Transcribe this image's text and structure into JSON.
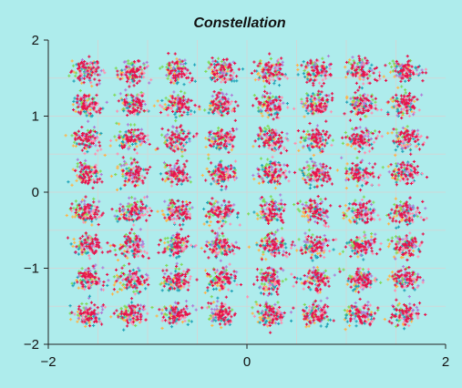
{
  "chart_data": {
    "type": "scatter",
    "title": "Constellation",
    "xlabel": "",
    "ylabel": "",
    "xlim": [
      -2,
      2
    ],
    "ylim": [
      -2,
      2
    ],
    "grid": true,
    "x_ticks": [
      "-2",
      "0",
      "2"
    ],
    "y_ticks": [
      "2",
      "1",
      "0",
      "-1",
      "-2"
    ],
    "constellation_levels": [
      -1.6,
      -1.15,
      -0.7,
      -0.25,
      0.25,
      0.7,
      1.15,
      1.6
    ],
    "points_per_cluster": 42,
    "series_colors": [
      "#ffb347",
      "#7ed957",
      "#1fa3b8",
      "#b07cd6",
      "#ff8fb0",
      "#e8114a"
    ],
    "colors": {
      "background": "#aeecec",
      "grid": "#cfd8d8",
      "axis": "#222222"
    }
  }
}
